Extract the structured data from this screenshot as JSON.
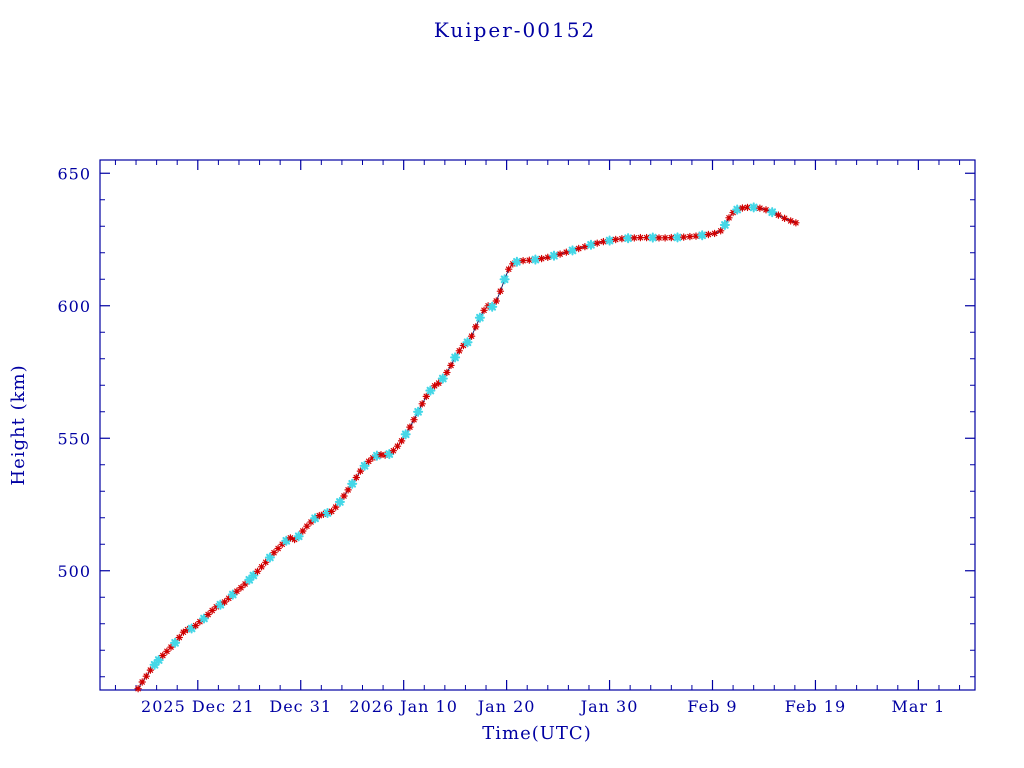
{
  "window": {
    "background": "#ffffff"
  },
  "chart_data": {
    "type": "scatter",
    "title": "Kuiper-00152",
    "xlabel": "Time(UTC)",
    "ylabel": "Height (km)",
    "axis_color": "#0000a2",
    "line_color": "#14145a",
    "marker_colors": {
      "r": "#d10000",
      "c": "#45d7e7"
    },
    "x_unit": "days since 2025-12-16 00:00 UTC",
    "xlim": [
      -4.5,
      80.5
    ],
    "ylim": [
      455,
      655
    ],
    "x_ticks": [
      {
        "day": 5,
        "label": "2025 Dec 21"
      },
      {
        "day": 15,
        "label": "Dec 31"
      },
      {
        "day": 25,
        "label": "2026 Jan 10"
      },
      {
        "day": 35,
        "label": "Jan 20"
      },
      {
        "day": 45,
        "label": "Jan 30"
      },
      {
        "day": 55,
        "label": "Feb 9"
      },
      {
        "day": 65,
        "label": "Feb 19"
      },
      {
        "day": 75,
        "label": "Mar 1"
      }
    ],
    "x_minor_step": 2,
    "y_ticks": [
      500,
      550,
      600,
      650
    ],
    "y_minor_step": 10,
    "points": [
      [
        -0.8,
        455.5,
        "r"
      ],
      [
        -0.4,
        458.0,
        "r"
      ],
      [
        0.0,
        460.2,
        "r"
      ],
      [
        0.4,
        462.5,
        "r"
      ],
      [
        0.8,
        464.5,
        "c"
      ],
      [
        1.2,
        466.3,
        "c"
      ],
      [
        1.6,
        468.0,
        "r"
      ],
      [
        2.0,
        469.6,
        "r"
      ],
      [
        2.4,
        471.2,
        "r"
      ],
      [
        2.8,
        472.8,
        "c"
      ],
      [
        3.2,
        474.8,
        "r"
      ],
      [
        3.6,
        476.8,
        "r"
      ],
      [
        4.0,
        477.8,
        "r"
      ],
      [
        4.4,
        478.2,
        "c"
      ],
      [
        4.8,
        479.3,
        "r"
      ],
      [
        5.2,
        480.8,
        "r"
      ],
      [
        5.6,
        482.0,
        "c"
      ],
      [
        6.0,
        483.5,
        "r"
      ],
      [
        6.4,
        485.0,
        "r"
      ],
      [
        6.8,
        486.4,
        "r"
      ],
      [
        7.2,
        487.2,
        "c"
      ],
      [
        7.6,
        488.2,
        "r"
      ],
      [
        8.0,
        489.6,
        "r"
      ],
      [
        8.4,
        491.0,
        "c"
      ],
      [
        8.8,
        492.3,
        "r"
      ],
      [
        9.2,
        493.6,
        "r"
      ],
      [
        9.6,
        495.0,
        "r"
      ],
      [
        10.0,
        496.6,
        "c"
      ],
      [
        10.4,
        498.2,
        "c"
      ],
      [
        10.8,
        499.8,
        "r"
      ],
      [
        11.2,
        501.5,
        "r"
      ],
      [
        11.6,
        503.2,
        "r"
      ],
      [
        12.0,
        505.0,
        "c"
      ],
      [
        12.4,
        506.8,
        "r"
      ],
      [
        12.8,
        508.4,
        "r"
      ],
      [
        13.2,
        510.0,
        "r"
      ],
      [
        13.6,
        511.3,
        "c"
      ],
      [
        14.0,
        512.4,
        "r"
      ],
      [
        14.4,
        511.8,
        "r"
      ],
      [
        14.8,
        513.0,
        "c"
      ],
      [
        15.2,
        515.0,
        "r"
      ],
      [
        15.6,
        516.8,
        "r"
      ],
      [
        16.0,
        518.4,
        "r"
      ],
      [
        16.4,
        519.8,
        "c"
      ],
      [
        16.8,
        520.8,
        "r"
      ],
      [
        17.2,
        521.3,
        "r"
      ],
      [
        17.6,
        521.8,
        "c"
      ],
      [
        18.0,
        522.4,
        "r"
      ],
      [
        18.4,
        524.0,
        "r"
      ],
      [
        18.8,
        526.0,
        "c"
      ],
      [
        19.2,
        528.2,
        "r"
      ],
      [
        19.6,
        530.5,
        "r"
      ],
      [
        20.0,
        532.8,
        "c"
      ],
      [
        20.4,
        535.2,
        "r"
      ],
      [
        20.8,
        537.6,
        "r"
      ],
      [
        21.2,
        539.6,
        "c"
      ],
      [
        21.6,
        541.3,
        "r"
      ],
      [
        22.0,
        542.6,
        "r"
      ],
      [
        22.4,
        543.4,
        "c"
      ],
      [
        22.8,
        543.8,
        "r"
      ],
      [
        23.2,
        543.6,
        "r"
      ],
      [
        23.6,
        544.0,
        "c"
      ],
      [
        24.0,
        545.3,
        "r"
      ],
      [
        24.4,
        547.0,
        "r"
      ],
      [
        24.8,
        549.0,
        "r"
      ],
      [
        25.2,
        551.5,
        "c"
      ],
      [
        25.6,
        554.2,
        "r"
      ],
      [
        26.0,
        557.0,
        "r"
      ],
      [
        26.4,
        560.0,
        "c"
      ],
      [
        26.8,
        563.0,
        "r"
      ],
      [
        27.2,
        565.8,
        "r"
      ],
      [
        27.6,
        568.0,
        "c"
      ],
      [
        28.0,
        569.8,
        "r"
      ],
      [
        28.4,
        570.8,
        "r"
      ],
      [
        28.8,
        572.5,
        "c"
      ],
      [
        29.2,
        574.8,
        "r"
      ],
      [
        29.6,
        577.5,
        "r"
      ],
      [
        30.0,
        580.5,
        "c"
      ],
      [
        30.4,
        583.0,
        "r"
      ],
      [
        30.8,
        585.0,
        "r"
      ],
      [
        31.2,
        586.2,
        "c"
      ],
      [
        31.6,
        588.5,
        "r"
      ],
      [
        32.0,
        592.0,
        "r"
      ],
      [
        32.4,
        595.5,
        "c"
      ],
      [
        32.8,
        598.3,
        "r"
      ],
      [
        33.2,
        600.0,
        "r"
      ],
      [
        33.6,
        599.6,
        "c"
      ],
      [
        34.0,
        601.8,
        "r"
      ],
      [
        34.4,
        605.5,
        "r"
      ],
      [
        34.8,
        610.0,
        "c"
      ],
      [
        35.2,
        613.8,
        "r"
      ],
      [
        35.6,
        615.8,
        "r"
      ],
      [
        36.0,
        616.6,
        "c"
      ],
      [
        36.6,
        617.0,
        "r"
      ],
      [
        37.2,
        617.2,
        "r"
      ],
      [
        37.8,
        617.4,
        "c"
      ],
      [
        38.4,
        617.8,
        "r"
      ],
      [
        39.0,
        618.3,
        "r"
      ],
      [
        39.6,
        618.9,
        "c"
      ],
      [
        40.2,
        619.5,
        "r"
      ],
      [
        40.8,
        620.2,
        "r"
      ],
      [
        41.4,
        620.9,
        "c"
      ],
      [
        42.0,
        621.6,
        "r"
      ],
      [
        42.6,
        622.3,
        "r"
      ],
      [
        43.2,
        623.0,
        "c"
      ],
      [
        43.8,
        623.6,
        "r"
      ],
      [
        44.4,
        624.2,
        "r"
      ],
      [
        45.0,
        624.6,
        "c"
      ],
      [
        45.6,
        625.0,
        "r"
      ],
      [
        46.2,
        625.3,
        "r"
      ],
      [
        46.8,
        625.5,
        "c"
      ],
      [
        47.4,
        625.6,
        "r"
      ],
      [
        48.0,
        625.7,
        "r"
      ],
      [
        48.6,
        625.7,
        "r"
      ],
      [
        49.2,
        625.7,
        "c"
      ],
      [
        49.8,
        625.6,
        "r"
      ],
      [
        50.4,
        625.6,
        "r"
      ],
      [
        51.0,
        625.7,
        "r"
      ],
      [
        51.6,
        625.8,
        "c"
      ],
      [
        52.2,
        625.9,
        "r"
      ],
      [
        52.8,
        626.1,
        "r"
      ],
      [
        53.4,
        626.3,
        "r"
      ],
      [
        54.0,
        626.6,
        "c"
      ],
      [
        54.6,
        626.9,
        "r"
      ],
      [
        55.2,
        627.3,
        "r"
      ],
      [
        55.8,
        628.3,
        "r"
      ],
      [
        56.2,
        630.5,
        "c"
      ],
      [
        56.6,
        633.2,
        "r"
      ],
      [
        57.0,
        635.2,
        "r"
      ],
      [
        57.4,
        636.3,
        "c"
      ],
      [
        57.9,
        636.9,
        "r"
      ],
      [
        58.4,
        637.1,
        "r"
      ],
      [
        59.0,
        637.1,
        "c"
      ],
      [
        59.6,
        636.8,
        "r"
      ],
      [
        60.2,
        636.2,
        "r"
      ],
      [
        60.8,
        635.3,
        "c"
      ],
      [
        61.4,
        634.2,
        "r"
      ],
      [
        62.0,
        633.0,
        "r"
      ],
      [
        62.6,
        632.0,
        "r"
      ],
      [
        63.1,
        631.3,
        "r"
      ]
    ]
  }
}
